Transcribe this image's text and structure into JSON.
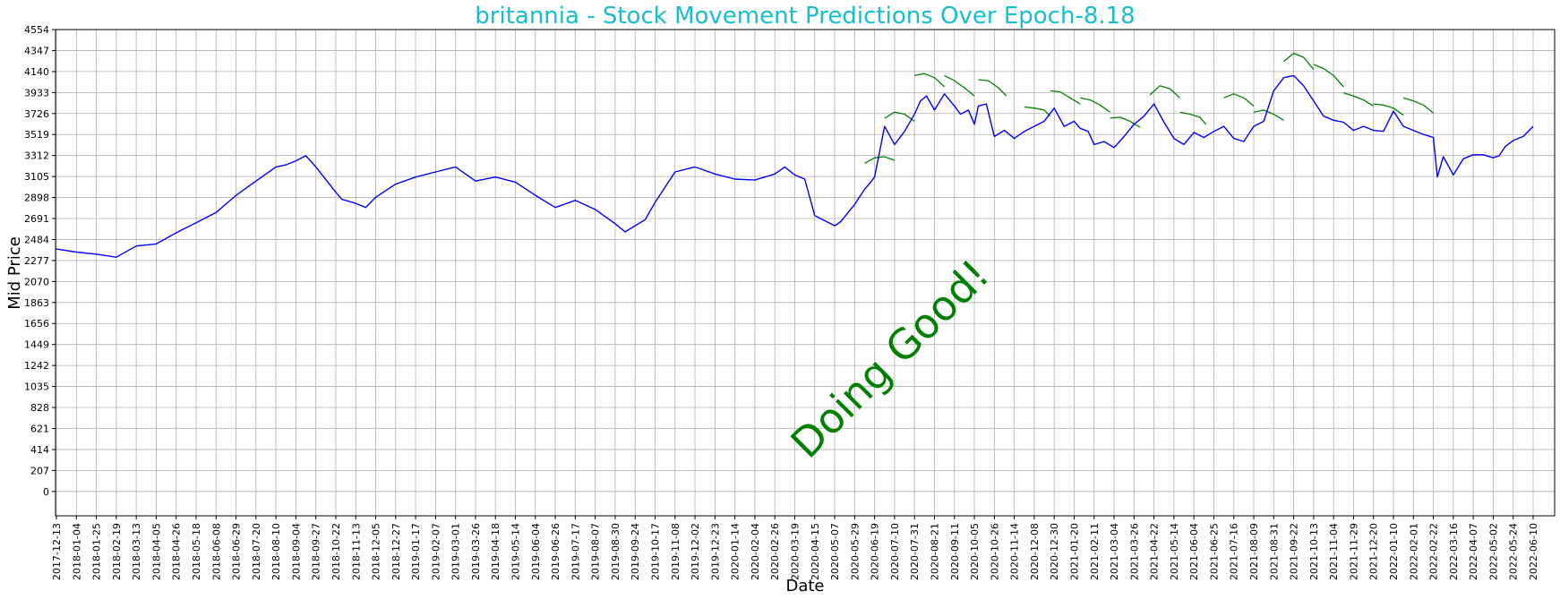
{
  "chart_data": {
    "type": "line",
    "title": "britannia - Stock Movement Predictions Over Epoch-8.18",
    "xlabel": "Date",
    "ylabel": "Mid Price",
    "annotation": "Doing Good!",
    "grid": true,
    "colors": {
      "title": "#17becf",
      "actual": "#0000ff",
      "prediction": "#008000",
      "annotation": "#008000",
      "grid": "#b0b0b0"
    },
    "ylim": [
      -240,
      4554
    ],
    "y_ticks": [
      0,
      207,
      414,
      621,
      828,
      1035,
      1242,
      1449,
      1656,
      1863,
      2070,
      2277,
      2484,
      2691,
      2898,
      3105,
      3312,
      3519,
      3726,
      3933,
      4140,
      4347,
      4554
    ],
    "x_ticks": [
      "2017-12-13",
      "2018-01-04",
      "2018-01-25",
      "2018-02-19",
      "2018-03-13",
      "2018-04-05",
      "2018-04-26",
      "2018-05-18",
      "2018-06-08",
      "2018-06-29",
      "2018-07-20",
      "2018-08-10",
      "2018-09-04",
      "2018-09-27",
      "2018-10-22",
      "2018-11-13",
      "2018-12-05",
      "2018-12-27",
      "2019-01-17",
      "2019-02-07",
      "2019-03-01",
      "2019-03-26",
      "2019-04-18",
      "2019-05-14",
      "2019-06-04",
      "2019-06-26",
      "2019-07-17",
      "2019-08-07",
      "2019-08-30",
      "2019-09-24",
      "2019-10-17",
      "2019-11-08",
      "2019-12-02",
      "2019-12-23",
      "2020-01-14",
      "2020-02-04",
      "2020-02-26",
      "2020-03-19",
      "2020-04-15",
      "2020-05-07",
      "2020-05-29",
      "2020-06-19",
      "2020-07-10",
      "2020-07-31",
      "2020-08-21",
      "2020-09-11",
      "2020-10-05",
      "2020-10-26",
      "2020-11-14",
      "2020-12-08",
      "2020-12-30",
      "2021-01-20",
      "2021-02-11",
      "2021-03-04",
      "2021-03-26",
      "2021-04-22",
      "2021-05-14",
      "2021-06-04",
      "2021-06-25",
      "2021-07-16",
      "2021-08-09",
      "2021-08-31",
      "2021-09-22",
      "2021-10-13",
      "2021-11-04",
      "2021-11-29",
      "2021-12-20",
      "2022-01-10",
      "2022-02-01",
      "2022-02-22",
      "2022-03-16",
      "2022-04-07",
      "2022-05-02",
      "2022-05-24",
      "2022-06-10"
    ],
    "xlim": [
      0,
      74
    ],
    "series": [
      {
        "role": "actual",
        "x": [
          0,
          1,
          2,
          3,
          4,
          4.5,
          5,
          6,
          7,
          8,
          9,
          10,
          11,
          11.5,
          12,
          12.5,
          13,
          14,
          14.3,
          15,
          15.5,
          16,
          17,
          18,
          19,
          20,
          21,
          22,
          23,
          24,
          25,
          26,
          27,
          28,
          28.5,
          29,
          29.5,
          30,
          31,
          32,
          33,
          34,
          35,
          36,
          36.5,
          37,
          37.5,
          38,
          39,
          39.3,
          40,
          40.5,
          40.8,
          41,
          41.5,
          42,
          42.5,
          43,
          43.3,
          43.6,
          44,
          44.5,
          45,
          45.3,
          45.7,
          46,
          46.2,
          46.6,
          47,
          47.5,
          48,
          48.5,
          49,
          49.5,
          50,
          50.5,
          51,
          51.3,
          51.7,
          52,
          52.5,
          53,
          53.5,
          54,
          54.5,
          55,
          55.5,
          56,
          56.5,
          57,
          57.5,
          58,
          58.5,
          59,
          59.5,
          60,
          60.5,
          61,
          61.5,
          62,
          62.5,
          63,
          63.5,
          64,
          64.5,
          65,
          65.5,
          66,
          66.5,
          67,
          67.5,
          68,
          68.5,
          69,
          69.2,
          69.5,
          70,
          70.5,
          71,
          71.5,
          72,
          72.3,
          72.6,
          73,
          73.5,
          74
        ],
        "y": [
          2390,
          2360,
          2340,
          2310,
          2420,
          2430,
          2440,
          2550,
          2650,
          2750,
          2920,
          3060,
          3200,
          3220,
          3260,
          3310,
          3200,
          2950,
          2880,
          2840,
          2800,
          2900,
          3030,
          3100,
          3150,
          3200,
          3060,
          3100,
          3050,
          2920,
          2800,
          2870,
          2780,
          2640,
          2560,
          2620,
          2680,
          2850,
          3150,
          3200,
          3130,
          3080,
          3070,
          3130,
          3200,
          3120,
          3080,
          2720,
          2620,
          2660,
          2830,
          2980,
          3050,
          3100,
          3600,
          3420,
          3550,
          3720,
          3850,
          3900,
          3760,
          3920,
          3800,
          3720,
          3760,
          3620,
          3800,
          3820,
          3500,
          3560,
          3480,
          3550,
          3600,
          3650,
          3780,
          3600,
          3650,
          3580,
          3550,
          3420,
          3450,
          3390,
          3500,
          3620,
          3700,
          3820,
          3640,
          3480,
          3420,
          3540,
          3490,
          3550,
          3600,
          3480,
          3450,
          3600,
          3650,
          3950,
          4080,
          4100,
          4000,
          3850,
          3700,
          3660,
          3640,
          3560,
          3600,
          3560,
          3550,
          3750,
          3600,
          3560,
          3520,
          3490,
          3100,
          3300,
          3120,
          3280,
          3320,
          3320,
          3290,
          3310,
          3400,
          3460,
          3500,
          3600
        ]
      }
    ],
    "predictions": [
      {
        "x": [
          40.5,
          41,
          41.5,
          42
        ],
        "y": [
          3235,
          3290,
          3300,
          3265
        ]
      },
      {
        "x": [
          41.5,
          42,
          42.5,
          43
        ],
        "y": [
          3680,
          3740,
          3720,
          3650
        ]
      },
      {
        "x": [
          43,
          43.5,
          44,
          44.5
        ],
        "y": [
          4100,
          4120,
          4080,
          3990
        ]
      },
      {
        "x": [
          44.5,
          45,
          45.5,
          46
        ],
        "y": [
          4100,
          4050,
          3980,
          3900
        ]
      },
      {
        "x": [
          46.2,
          46.7,
          47.2,
          47.6
        ],
        "y": [
          4060,
          4050,
          3980,
          3900
        ]
      },
      {
        "x": [
          48.5,
          49,
          49.5,
          49.8
        ],
        "y": [
          3790,
          3780,
          3760,
          3700
        ]
      },
      {
        "x": [
          49.8,
          50.3,
          50.8,
          51.3
        ],
        "y": [
          3950,
          3940,
          3880,
          3820
        ]
      },
      {
        "x": [
          51.3,
          51.8,
          52.3,
          52.8
        ],
        "y": [
          3880,
          3860,
          3810,
          3740
        ]
      },
      {
        "x": [
          52.8,
          53.3,
          53.8,
          54.3
        ],
        "y": [
          3680,
          3690,
          3650,
          3590
        ]
      },
      {
        "x": [
          54.8,
          55.3,
          55.8,
          56.3
        ],
        "y": [
          3910,
          4000,
          3970,
          3880
        ]
      },
      {
        "x": [
          56.3,
          56.8,
          57.3,
          57.6
        ],
        "y": [
          3740,
          3720,
          3690,
          3620
        ]
      },
      {
        "x": [
          58.5,
          59,
          59.5,
          60
        ],
        "y": [
          3880,
          3920,
          3880,
          3800
        ]
      },
      {
        "x": [
          60,
          60.5,
          61,
          61.5
        ],
        "y": [
          3740,
          3760,
          3720,
          3660
        ]
      },
      {
        "x": [
          61.5,
          62,
          62.5,
          63
        ],
        "y": [
          4240,
          4320,
          4280,
          4160
        ]
      },
      {
        "x": [
          63,
          63.5,
          64,
          64.5
        ],
        "y": [
          4210,
          4170,
          4100,
          3990
        ]
      },
      {
        "x": [
          64.5,
          65,
          65.5,
          66
        ],
        "y": [
          3930,
          3900,
          3860,
          3800
        ]
      },
      {
        "x": [
          66,
          66.5,
          67,
          67.5
        ],
        "y": [
          3820,
          3810,
          3780,
          3710
        ]
      },
      {
        "x": [
          67.5,
          68,
          68.5,
          69
        ],
        "y": [
          3880,
          3850,
          3810,
          3730
        ]
      }
    ]
  }
}
